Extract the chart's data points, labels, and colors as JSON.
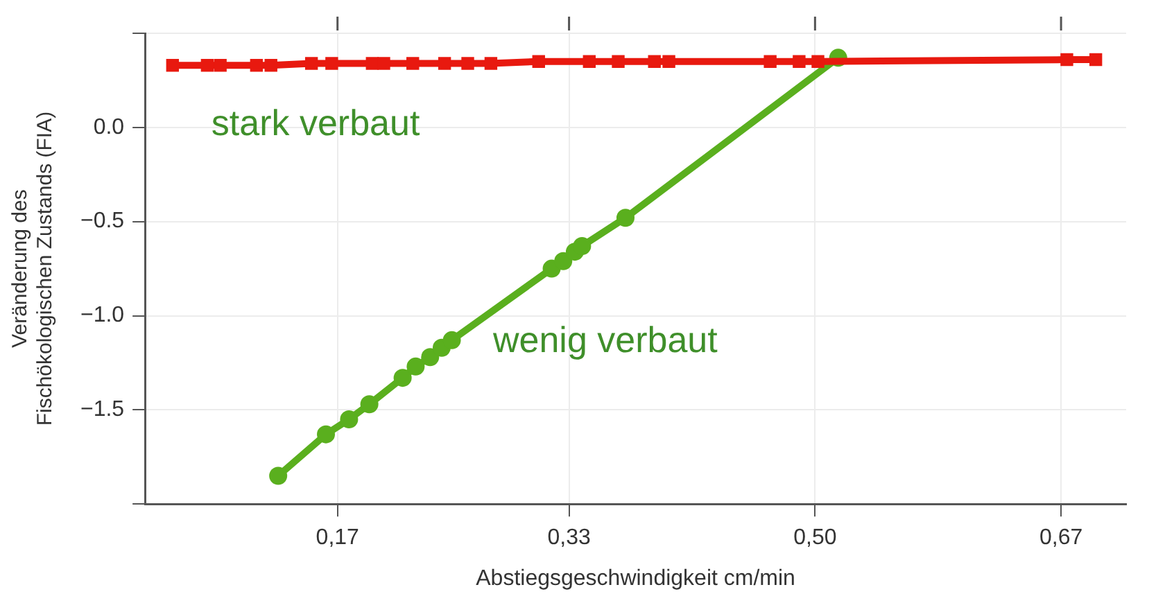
{
  "chart_data": {
    "type": "line",
    "xlabel": "Abstiegsgeschwindigkeit cm/min",
    "ylabel": "Veränderung des\nFischökologischen Zustands (FIA)",
    "xlim": [
      0.037,
      0.715
    ],
    "xticks": [
      {
        "value": 0.17,
        "label": "0,17"
      },
      {
        "value": 0.33,
        "label": "0,33"
      },
      {
        "value": 0.5,
        "label": "0,50"
      },
      {
        "value": 0.67,
        "label": "0,67"
      }
    ],
    "ylim": [
      -2.0,
      0.5
    ],
    "yticks": [
      {
        "value": -2.0,
        "label": null
      },
      {
        "value": -1.5,
        "label": "−1.5"
      },
      {
        "value": -1.0,
        "label": "−1.0"
      },
      {
        "value": -0.5,
        "label": "−0.5"
      },
      {
        "value": 0.0,
        "label": "0.0"
      },
      {
        "value": 0.5,
        "label": null
      }
    ],
    "tick_labels": "xy",
    "grid": true,
    "legend": false,
    "line_style": "solid",
    "series": [
      {
        "name": "stark verbaut",
        "color": "#e8190f",
        "marker": "square",
        "x": [
          0.056,
          0.08,
          0.089,
          0.114,
          0.124,
          0.152,
          0.166,
          0.194,
          0.202,
          0.222,
          0.244,
          0.26,
          0.276,
          0.309,
          0.344,
          0.364,
          0.389,
          0.399,
          0.469,
          0.489,
          0.502,
          0.674,
          0.694
        ],
        "values": [
          0.33,
          0.33,
          0.33,
          0.33,
          0.33,
          0.34,
          0.34,
          0.34,
          0.34,
          0.34,
          0.34,
          0.34,
          0.34,
          0.35,
          0.35,
          0.35,
          0.35,
          0.35,
          0.35,
          0.35,
          0.35,
          0.36,
          0.36
        ]
      },
      {
        "name": "wenig verbaut",
        "color": "#5aaf1e",
        "marker": "circle",
        "x": [
          0.129,
          0.162,
          0.178,
          0.192,
          0.215,
          0.224,
          0.234,
          0.242,
          0.249,
          0.318,
          0.326,
          0.334,
          0.339,
          0.369,
          0.516
        ],
        "values": [
          -1.85,
          -1.63,
          -1.55,
          -1.47,
          -1.33,
          -1.27,
          -1.22,
          -1.17,
          -1.13,
          -0.75,
          -0.71,
          -0.66,
          -0.63,
          -0.48,
          0.37
        ]
      }
    ]
  }
}
